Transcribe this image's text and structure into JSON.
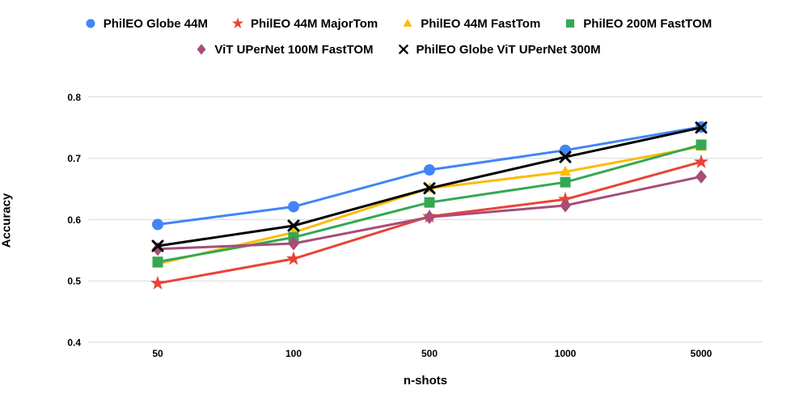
{
  "chart_data": {
    "type": "line",
    "title": "",
    "xlabel": "n-shots",
    "ylabel": "Accuracy",
    "categories": [
      "50",
      "100",
      "500",
      "1000",
      "5000"
    ],
    "y_ticks": [
      0.4,
      0.5,
      0.6,
      0.7,
      0.8
    ],
    "ylim": [
      0.4,
      0.8
    ],
    "grid": true,
    "legend_position": "top",
    "gridline_color": "#d9d9d9",
    "series": [
      {
        "name": "PhilEO Globe 44M",
        "marker": "circle",
        "color": "#4285F4",
        "values": [
          0.592,
          0.621,
          0.681,
          0.713,
          0.751
        ]
      },
      {
        "name": "PhilEO 44M MajorTom",
        "marker": "star",
        "color": "#EA4335",
        "values": [
          0.496,
          0.536,
          0.605,
          0.633,
          0.694
        ]
      },
      {
        "name": "PhilEO 44M FastTom",
        "marker": "triangle",
        "color": "#FBBC04",
        "values": [
          0.528,
          0.579,
          0.651,
          0.678,
          0.719
        ]
      },
      {
        "name": "PhilEO 200M FastTOM",
        "marker": "square",
        "color": "#34A853",
        "values": [
          0.531,
          0.571,
          0.628,
          0.661,
          0.722
        ]
      },
      {
        "name": "ViT UPerNet 100M FastTOM",
        "marker": "diamond",
        "color": "#A64D79",
        "values": [
          0.552,
          0.561,
          0.604,
          0.623,
          0.67
        ]
      },
      {
        "name": "PhilEO Globe ViT UPerNet 300M",
        "marker": "x",
        "color": "#000000",
        "values": [
          0.557,
          0.59,
          0.651,
          0.702,
          0.75
        ]
      }
    ],
    "legend_row_split": 4
  }
}
